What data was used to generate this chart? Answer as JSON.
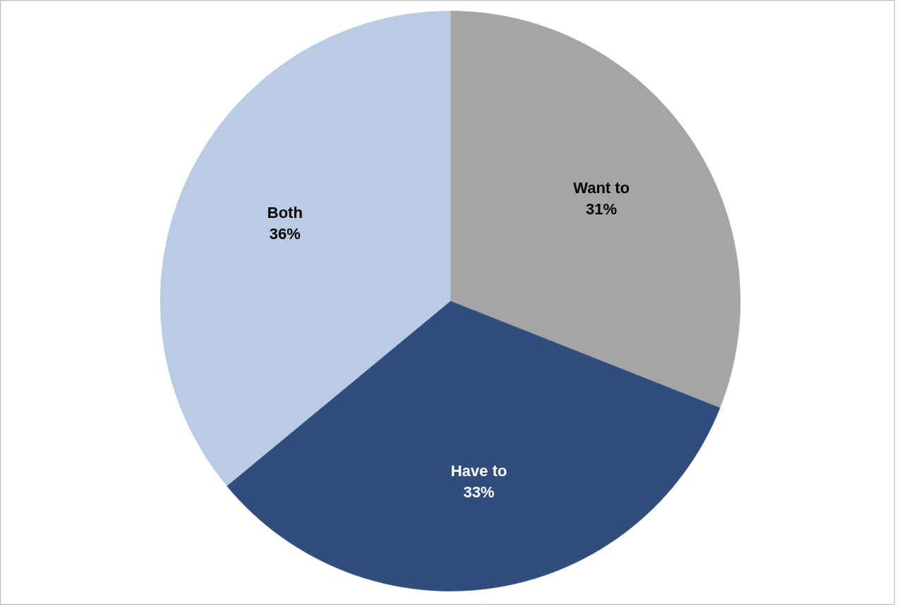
{
  "chart_data": {
    "type": "pie",
    "categories": [
      "Want to",
      "Have to",
      "Both"
    ],
    "values": [
      31,
      33,
      36
    ],
    "colors": [
      "#a5a5a5",
      "#314d7c",
      "#b9cce4"
    ],
    "value_labels": [
      "31%",
      "33%",
      "36%"
    ]
  }
}
